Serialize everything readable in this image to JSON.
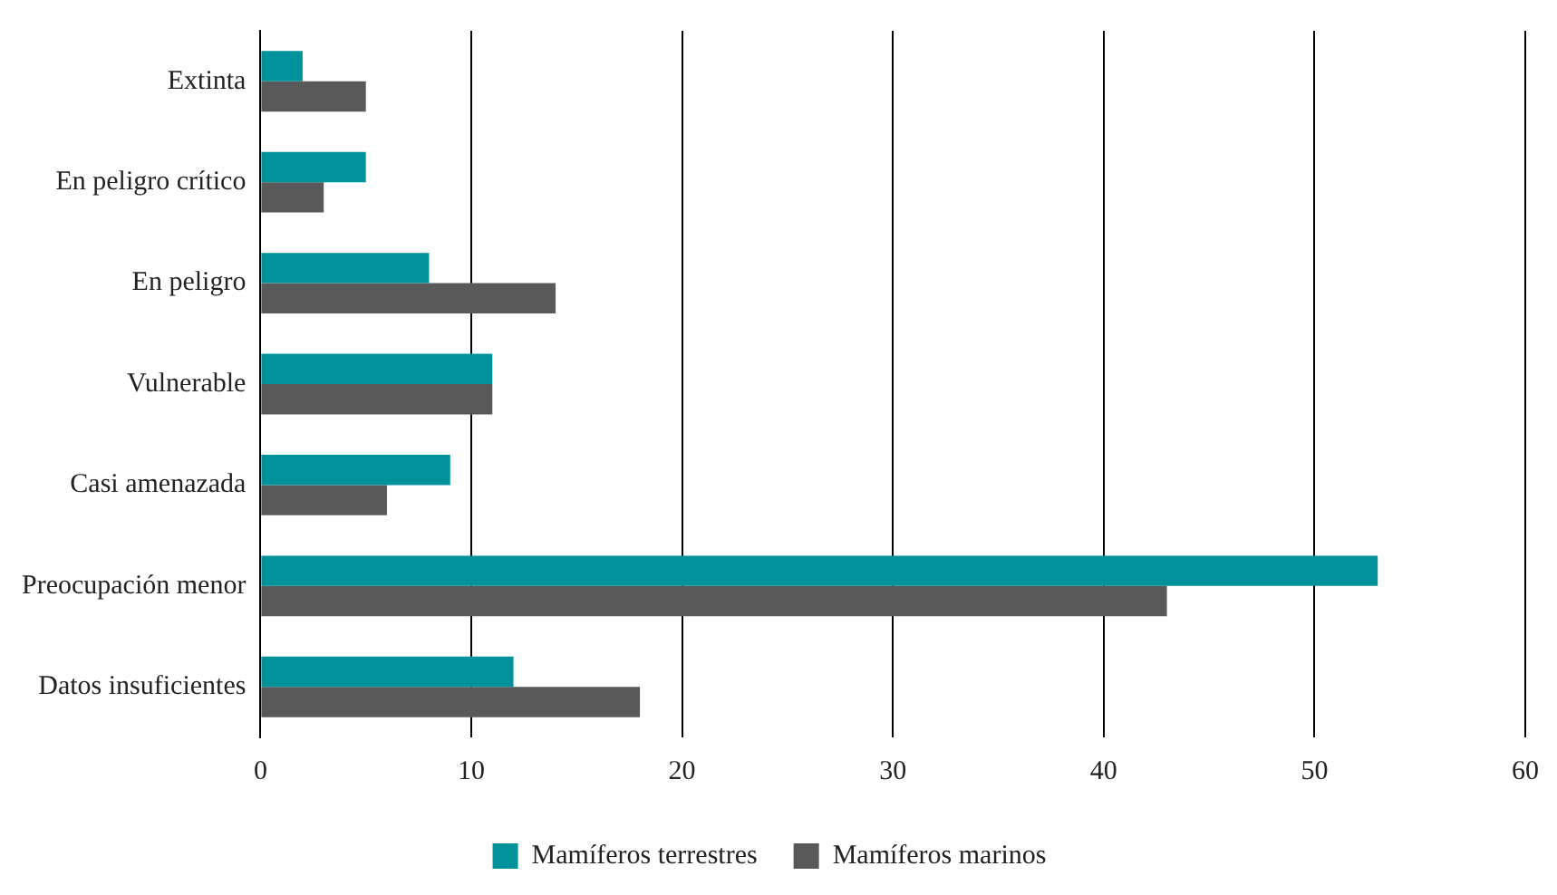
{
  "chart_data": {
    "type": "bar",
    "orientation": "horizontal",
    "categories": [
      "Extinta",
      "En peligro crítico",
      "En peligro",
      "Vulnerable",
      "Casi amenazada",
      "Preocupación menor",
      "Datos insuficientes"
    ],
    "series": [
      {
        "name": "Mamíferos terrestres",
        "color": "#00929a",
        "values": [
          2,
          5,
          8,
          11,
          9,
          53,
          12
        ]
      },
      {
        "name": "Mamíferos marinos",
        "color": "#595959",
        "values": [
          5,
          3,
          14,
          11,
          6,
          43,
          18
        ]
      }
    ],
    "xlim": [
      0,
      60
    ],
    "xticks": [
      0,
      10,
      20,
      30,
      40,
      50,
      60
    ],
    "grid": "x",
    "legend": "bottom"
  }
}
